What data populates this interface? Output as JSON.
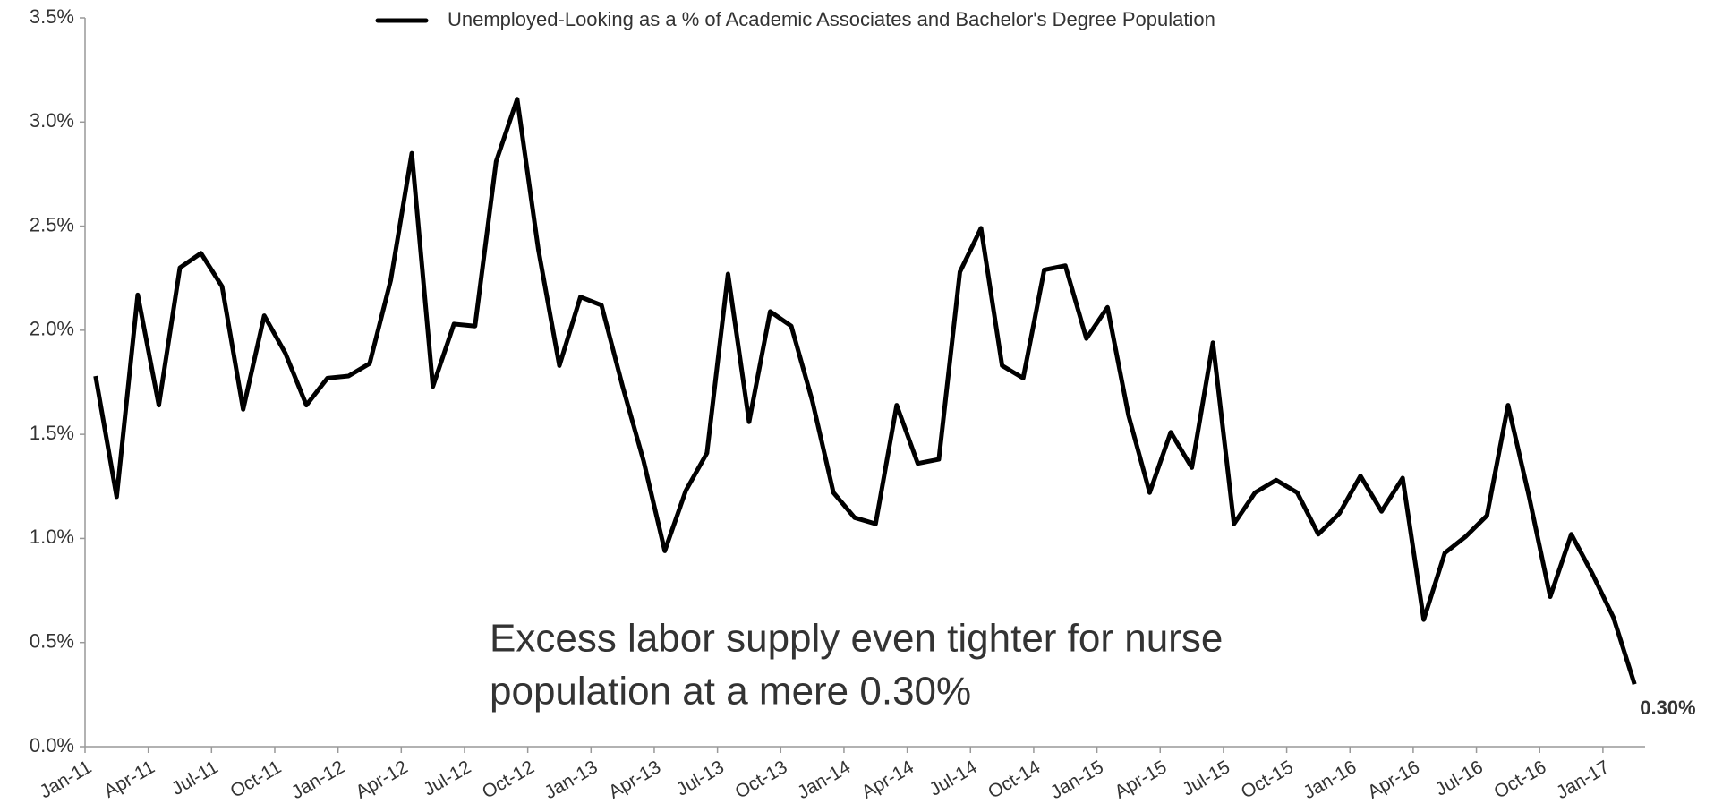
{
  "chart_data": {
    "type": "line",
    "legend": "top",
    "annotation": [
      "Excess labor supply even tighter for nurse",
      "population at a mere 0.30%"
    ],
    "categories": [
      "Jan-11",
      null,
      null,
      "Apr-11",
      null,
      null,
      "Jul-11",
      null,
      null,
      "Oct-11",
      null,
      null,
      "Jan-12",
      null,
      null,
      "Apr-12",
      null,
      null,
      "Jul-12",
      null,
      null,
      "Oct-12",
      null,
      null,
      "Jan-13",
      null,
      null,
      "Apr-13",
      null,
      null,
      "Jul-13",
      null,
      null,
      "Oct-13",
      null,
      null,
      "Jan-14",
      null,
      null,
      "Apr-14",
      null,
      null,
      "Jul-14",
      null,
      null,
      "Oct-14",
      null,
      null,
      "Jan-15",
      null,
      null,
      "Apr-15",
      null,
      null,
      "Jul-15",
      null,
      null,
      "Oct-15",
      null,
      null,
      "Jan-16",
      null,
      null,
      "Apr-16",
      null,
      null,
      "Jul-16",
      null,
      null,
      "Oct-16",
      null,
      null,
      "Jan-17",
      null
    ],
    "series": [
      {
        "name": "Unemployed-Looking as a % of Academic Associates and Bachelor's Degree Population",
        "color": "#000000",
        "values": [
          1.78,
          1.2,
          2.17,
          1.64,
          2.3,
          2.37,
          2.21,
          1.62,
          2.07,
          1.89,
          1.64,
          1.77,
          1.78,
          1.84,
          2.24,
          2.85,
          1.73,
          2.03,
          2.02,
          2.81,
          3.11,
          2.39,
          1.83,
          2.16,
          2.12,
          1.73,
          1.37,
          0.94,
          1.23,
          1.41,
          2.27,
          1.56,
          2.09,
          2.02,
          1.66,
          1.22,
          1.1,
          1.07,
          1.64,
          1.36,
          1.38,
          2.28,
          2.49,
          1.83,
          1.77,
          2.29,
          2.31,
          1.96,
          2.11,
          1.59,
          1.22,
          1.51,
          1.34,
          1.94,
          1.07,
          1.22,
          1.28,
          1.22,
          1.02,
          1.12,
          1.3,
          1.13,
          1.29,
          0.61,
          0.93,
          1.01,
          1.11,
          1.64,
          1.2,
          0.72,
          1.02,
          0.83,
          0.62,
          0.3
        ],
        "value_labels": [
          null,
          null,
          null,
          null,
          null,
          null,
          null,
          null,
          null,
          null,
          null,
          null,
          null,
          null,
          null,
          null,
          null,
          null,
          null,
          null,
          null,
          null,
          null,
          null,
          null,
          null,
          null,
          null,
          null,
          null,
          null,
          null,
          null,
          null,
          null,
          null,
          null,
          null,
          null,
          null,
          null,
          null,
          null,
          null,
          null,
          null,
          null,
          null,
          null,
          null,
          null,
          null,
          null,
          null,
          null,
          null,
          null,
          null,
          null,
          null,
          null,
          null,
          null,
          null,
          null,
          null,
          null,
          null,
          null,
          null,
          null,
          null,
          null,
          "0.30%"
        ]
      }
    ],
    "ylim": [
      0,
      3.5
    ],
    "yticks": [
      {
        "value": 0,
        "label": "0.0%"
      },
      {
        "value": 0.5,
        "label": "0.5%"
      },
      {
        "value": 1,
        "label": "1.0%"
      },
      {
        "value": 1.5,
        "label": "1.5%"
      },
      {
        "value": 2,
        "label": "2.0%"
      },
      {
        "value": 2.5,
        "label": "2.5%"
      },
      {
        "value": 3,
        "label": "3.0%"
      },
      {
        "value": 3.5,
        "label": "3.5%"
      }
    ]
  }
}
